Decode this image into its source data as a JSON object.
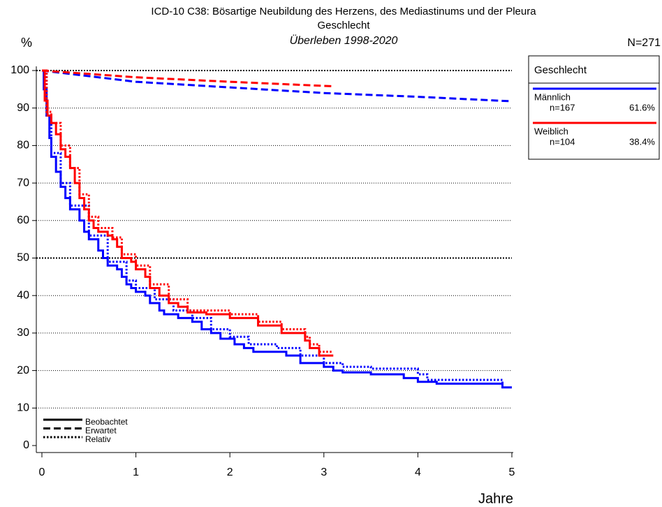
{
  "chart_data": {
    "type": "survival",
    "title": "ICD-10 C38: Bösartige Neubildung des Herzens, des Mediastinums und der Pleura",
    "title2": "Geschlecht",
    "subtitle": "Überleben 1998-2020",
    "y_label": "%",
    "x_label": "Jahre",
    "n_label": "N=271",
    "xlim": [
      0,
      5
    ],
    "xticks": [
      0,
      1,
      2,
      3,
      4,
      5
    ],
    "ylim": [
      0,
      100
    ],
    "yticks": [
      0,
      10,
      20,
      30,
      40,
      50,
      60,
      70,
      80,
      90,
      100
    ],
    "grid": true,
    "bold_grid": [
      50,
      100
    ],
    "line_styles": [
      {
        "label": "Beobachtet",
        "dash": "solid",
        "step": true
      },
      {
        "label": "Erwartet",
        "dash": "dashed",
        "step": false
      },
      {
        "label": "Relativ",
        "dash": "dotted",
        "step": true
      }
    ],
    "legend": {
      "title": "Geschlecht",
      "position": "right"
    },
    "groups": [
      {
        "name": "Männlich",
        "n": "n=167",
        "share": "61.6%",
        "color": "#0000ff",
        "curves": [
          {
            "x": [
              0,
              0.02,
              0.05,
              0.08,
              0.1,
              0.15,
              0.2,
              0.25,
              0.3,
              0.4,
              0.45,
              0.5,
              0.6,
              0.65,
              0.7,
              0.8,
              0.85,
              0.9,
              0.95,
              1.0,
              1.1,
              1.15,
              1.25,
              1.3,
              1.45,
              1.6,
              1.7,
              1.8,
              1.9,
              2.05,
              2.15,
              2.25,
              2.6,
              2.75,
              3.0,
              3.1,
              3.2,
              3.5,
              3.85,
              4.0,
              4.2,
              4.9,
              5.0
            ],
            "values": [
              100,
              95,
              88,
              82,
              77,
              73,
              69,
              66,
              63,
              60,
              57,
              55,
              52,
              50,
              48,
              47,
              45,
              43,
              42,
              41,
              40,
              38,
              36,
              35,
              34,
              33,
              31,
              30,
              28.5,
              27,
              26,
              25,
              24,
              22,
              21,
              20,
              19.5,
              19,
              18,
              17,
              16.5,
              15.5,
              15.5
            ]
          },
          {
            "x": [
              0,
              1,
              2,
              3,
              4,
              5
            ],
            "values": [
              100,
              97,
              95.5,
              94,
              93,
              91.8
            ]
          },
          {
            "x": [
              0,
              0.05,
              0.1,
              0.2,
              0.3,
              0.5,
              0.7,
              0.9,
              1.0,
              1.2,
              1.4,
              1.6,
              1.8,
              2.0,
              2.2,
              2.5,
              2.75,
              3.0,
              3.2,
              3.5,
              4.0,
              4.1,
              4.9
            ],
            "values": [
              100,
              88,
              78,
              70,
              64,
              56,
              49,
              44,
              42,
              39,
              36,
              34,
              31,
              29,
              27,
              26,
              24,
              22,
              21,
              20.5,
              19,
              17.5,
              16.5
            ]
          }
        ]
      },
      {
        "name": "Weiblich",
        "n": "n=104",
        "share": "38.4%",
        "color": "#ff0000",
        "curves": [
          {
            "x": [
              0,
              0.03,
              0.06,
              0.1,
              0.15,
              0.2,
              0.25,
              0.3,
              0.35,
              0.4,
              0.45,
              0.5,
              0.55,
              0.6,
              0.7,
              0.75,
              0.8,
              0.85,
              0.95,
              1.0,
              1.1,
              1.15,
              1.25,
              1.35,
              1.45,
              1.55,
              1.75,
              2.0,
              2.3,
              2.55,
              2.8,
              2.85,
              2.95,
              3.1
            ],
            "values": [
              100,
              92,
              88,
              86,
              83,
              79,
              77,
              74,
              70,
              66,
              63,
              60,
              58,
              57,
              56,
              55,
              53,
              50,
              49,
              47,
              45,
              42,
              40,
              38,
              37,
              35.5,
              35,
              34,
              32,
              30,
              28,
              26,
              24,
              24
            ]
          },
          {
            "x": [
              0,
              1,
              2,
              3.1
            ],
            "values": [
              100,
              98.2,
              97,
              95.8
            ]
          },
          {
            "x": [
              0,
              0.05,
              0.1,
              0.2,
              0.3,
              0.4,
              0.5,
              0.6,
              0.75,
              0.85,
              1.0,
              1.15,
              1.35,
              1.55,
              2.0,
              2.3,
              2.55,
              2.8,
              2.85,
              2.95,
              3.1
            ],
            "values": [
              100,
              89,
              86,
              80,
              74,
              67,
              61,
              58,
              55.5,
              51,
              48,
              43,
              39,
              36,
              35,
              33,
              31,
              29,
              27,
              25,
              25
            ]
          }
        ]
      }
    ]
  }
}
